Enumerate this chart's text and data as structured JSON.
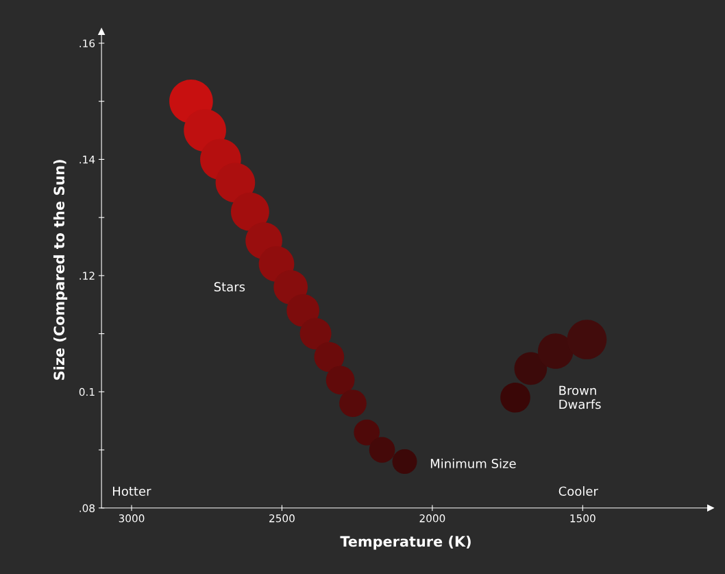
{
  "chart_data": {
    "type": "bubble",
    "xlabel": "Temperature (K)",
    "ylabel": "Size (Compared to the Sun)",
    "x": [
      2802,
      2756,
      2704,
      2655,
      2606,
      2560,
      2518,
      2471,
      2430,
      2388,
      2343,
      2306,
      2264,
      2218,
      2167,
      2092,
      1724,
      1673,
      1590,
      1486
    ],
    "values": [
      0.15,
      0.145,
      0.14,
      0.136,
      0.131,
      0.126,
      0.122,
      0.118,
      0.114,
      0.11,
      0.106,
      0.102,
      0.098,
      0.093,
      0.09,
      0.088,
      0.099,
      0.104,
      0.107,
      0.109
    ],
    "sizes": [
      1.0,
      0.94,
      0.88,
      0.82,
      0.77,
      0.71,
      0.66,
      0.61,
      0.56,
      0.52,
      0.47,
      0.43,
      0.39,
      0.35,
      0.35,
      0.32,
      0.47,
      0.56,
      0.66,
      0.82
    ],
    "colors": [
      "#c81010",
      "#bf1010",
      "#b50f0f",
      "#ac0f0f",
      "#a30e0e",
      "#990e0e",
      "#900d0d",
      "#870d0d",
      "#7d0c0c",
      "#740c0c",
      "#6b0b0b",
      "#610a0a",
      "#580a0a",
      "#4f0909",
      "#450909",
      "#3c0808",
      "#3a0707",
      "#3c0a0a",
      "#400b0b",
      "#420c0c"
    ],
    "xlim": [
      3100,
      1075
    ],
    "xticks": [
      3000,
      2500,
      2000,
      1500
    ],
    "ylim": [
      0.08,
      0.162
    ],
    "yticks": [
      {
        "value": 0.08,
        "label": ".08"
      },
      {
        "value": 0.09,
        "label": null
      },
      {
        "value": 0.1,
        "label": "0.1"
      },
      {
        "value": 0.11,
        "label": null
      },
      {
        "value": 0.12,
        "label": ".12"
      },
      {
        "value": 0.13,
        "label": null
      },
      {
        "value": 0.14,
        "label": ".14"
      },
      {
        "value": 0.15,
        "label": null
      },
      {
        "value": 0.16,
        "label": ".16"
      }
    ],
    "grid": false,
    "annotations": [
      "Stars",
      "Minimum Size",
      "Brown\nDwarfs",
      "Hotter",
      "Cooler"
    ]
  }
}
